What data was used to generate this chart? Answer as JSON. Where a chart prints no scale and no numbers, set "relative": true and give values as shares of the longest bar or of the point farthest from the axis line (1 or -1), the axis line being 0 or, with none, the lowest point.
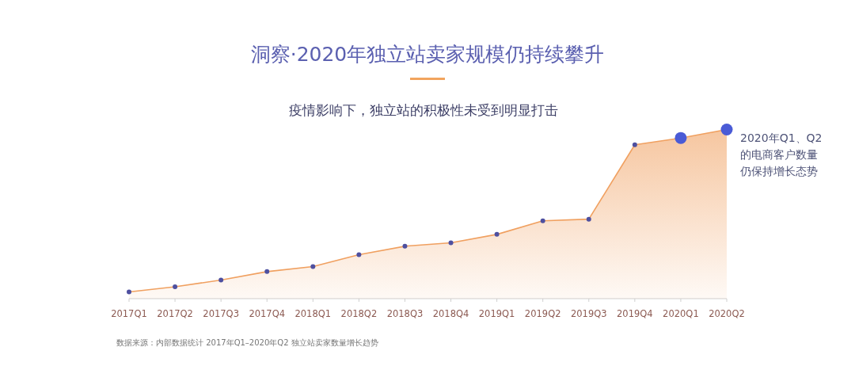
{
  "chart_data": {
    "type": "area",
    "relative": true,
    "title": "洞察·2020年独立站卖家规模仍持续攀升",
    "subtitle": "疫情影响下，独立站的积极性未受到明显打击",
    "categories": [
      "2017Q1",
      "2017Q2",
      "2017Q3",
      "2017Q4",
      "2018Q1",
      "2018Q2",
      "2018Q3",
      "2018Q4",
      "2019Q1",
      "2019Q2",
      "2019Q3",
      "2019Q4",
      "2020Q1",
      "2020Q2"
    ],
    "series": [
      {
        "color": "#f0a060",
        "values": [
          0.04,
          0.07,
          0.11,
          0.16,
          0.19,
          0.26,
          0.31,
          0.33,
          0.38,
          0.46,
          0.47,
          0.91,
          0.95,
          1
        ]
      },
      {
        "type": "bubble",
        "color": "#4e50a0",
        "values": [
          0.04,
          0.07,
          0.11,
          0.16,
          0.19,
          0.26,
          0.31,
          0.33,
          0.38,
          0.46,
          0.47,
          0.91,
          0.95,
          1
        ],
        "sizes": [
          0.16,
          0.16,
          0.16,
          0.16,
          0.16,
          0.16,
          0.16,
          0.16,
          0.16,
          0.16,
          0.16,
          0.16,
          1,
          1
        ],
        "colors": [
          null,
          null,
          null,
          null,
          null,
          null,
          null,
          null,
          null,
          null,
          null,
          null,
          "#4a5bd6",
          "#4a5bd6"
        ]
      }
    ],
    "annotations": [
      {
        "text": "2020年Q1、Q2的电商客户数量仍保持增长态势",
        "x": "2020Q2",
        "y": 1
      },
      "数据来源：内部数据统计 2017年Q1–2020年Q2 独立站卖家数量增长趋势"
    ]
  }
}
